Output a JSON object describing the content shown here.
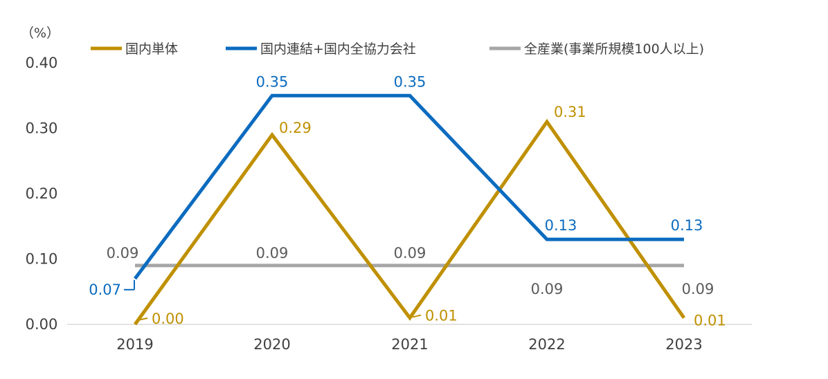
{
  "chart_data": {
    "type": "line",
    "unit": "（%）",
    "categories": [
      "2019",
      "2020",
      "2021",
      "2022",
      "2023"
    ],
    "ylim": [
      0,
      0.4
    ],
    "yticks": [
      "0.00",
      "0.10",
      "0.20",
      "0.30",
      "0.40"
    ],
    "grid": false,
    "legend_position": "top",
    "series": [
      {
        "name": "国内単体",
        "color": "#BF9000",
        "values": [
          0.0,
          0.29,
          0.01,
          0.31,
          0.01
        ],
        "labels": [
          "0.00",
          "0.29",
          "0.01",
          "0.31",
          "0.01"
        ]
      },
      {
        "name": "国内連結+国内全協力会社",
        "color": "#0B6BBF",
        "values": [
          0.07,
          0.35,
          0.35,
          0.13,
          0.13
        ],
        "labels": [
          "0.07",
          "0.35",
          "0.35",
          "0.13",
          "0.13"
        ]
      },
      {
        "name": "全産業(事業所規模100人以上)",
        "color": "#A6A6A6",
        "label_color": "#595959",
        "values": [
          0.09,
          0.09,
          0.09,
          0.09,
          0.09
        ],
        "labels": [
          "0.09",
          "0.09",
          "0.09",
          "0.09",
          "0.09"
        ]
      }
    ]
  }
}
